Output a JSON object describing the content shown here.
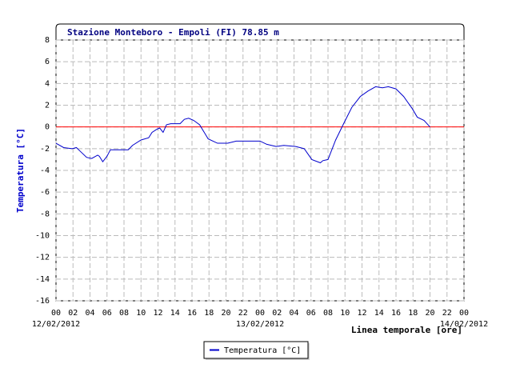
{
  "chart_data": {
    "type": "line",
    "title": "Stazione Monteboro - Empoli (FI) 78.85 m",
    "y_label": "Temperatura [°C]",
    "x_label": "Linea temporale [ore]",
    "xlim": [
      0,
      48
    ],
    "ylim": [
      -16,
      8
    ],
    "yticks": [
      -16,
      -14,
      -12,
      -10,
      -8,
      -6,
      -4,
      -2,
      0,
      2,
      4,
      6,
      8
    ],
    "xticks": [
      {
        "value": 0,
        "label": "00"
      },
      {
        "value": 2,
        "label": "02"
      },
      {
        "value": 4,
        "label": "04"
      },
      {
        "value": 6,
        "label": "06"
      },
      {
        "value": 8,
        "label": "08"
      },
      10,
      12,
      14,
      16,
      18,
      20,
      22,
      {
        "value": 24,
        "label": "00"
      },
      {
        "value": 26,
        "label": "02"
      },
      {
        "value": 28,
        "label": "04"
      },
      {
        "value": 30,
        "label": "06"
      },
      {
        "value": 32,
        "label": "08"
      },
      {
        "value": 34,
        "label": "10"
      },
      {
        "value": 36,
        "label": "12"
      },
      {
        "value": 38,
        "label": "14"
      },
      {
        "value": 40,
        "label": "16"
      },
      {
        "value": 42,
        "label": "18"
      },
      {
        "value": 44,
        "label": "20"
      },
      {
        "value": 46,
        "label": "22"
      },
      {
        "value": 48,
        "label": "00"
      }
    ],
    "x_dates": [
      {
        "value": 0,
        "label": "12/02/2012"
      },
      {
        "value": 24,
        "label": "13/02/2012"
      },
      {
        "value": 48,
        "label": "14/02/2012"
      }
    ],
    "grid": true,
    "hline": {
      "value": 0,
      "color": "#ff0000"
    },
    "series": [
      {
        "name": "Temperatura [°C]",
        "color": "#0000cc",
        "x": [
          0,
          0.9,
          1.9,
          2.4,
          2.8,
          3.6,
          4.2,
          4.9,
          5.1,
          5.5,
          6.0,
          6.4,
          8.5,
          9.0,
          10.0,
          10.9,
          11.3,
          11.9,
          12.2,
          12.6,
          13.0,
          13.5,
          14.6,
          15.1,
          15.6,
          16.2,
          16.9,
          17.9,
          19.0,
          20.2,
          21.2,
          24.0,
          24.8,
          25.9,
          26.8,
          28.2,
          29.2,
          30.1,
          31.1,
          31.4,
          32.0,
          32.9,
          33.9,
          34.8,
          35.8,
          36.7,
          37.6,
          38.4,
          39.1,
          40.0,
          40.9,
          41.9,
          42.5,
          43.3,
          44.0
        ],
        "values": [
          -1.5,
          -1.9,
          -2.0,
          -1.9,
          -2.2,
          -2.8,
          -2.9,
          -2.6,
          -2.7,
          -3.2,
          -2.7,
          -2.1,
          -2.1,
          -1.7,
          -1.2,
          -1.0,
          -0.5,
          -0.2,
          -0.1,
          -0.5,
          0.2,
          0.3,
          0.3,
          0.7,
          0.8,
          0.6,
          0.2,
          -1.1,
          -1.5,
          -1.5,
          -1.3,
          -1.3,
          -1.6,
          -1.8,
          -1.7,
          -1.8,
          -2.0,
          -3.0,
          -3.3,
          -3.1,
          -3.0,
          -1.2,
          0.4,
          1.8,
          2.8,
          3.3,
          3.7,
          3.6,
          3.7,
          3.5,
          2.8,
          1.7,
          0.9,
          0.6,
          0.0
        ]
      }
    ]
  }
}
